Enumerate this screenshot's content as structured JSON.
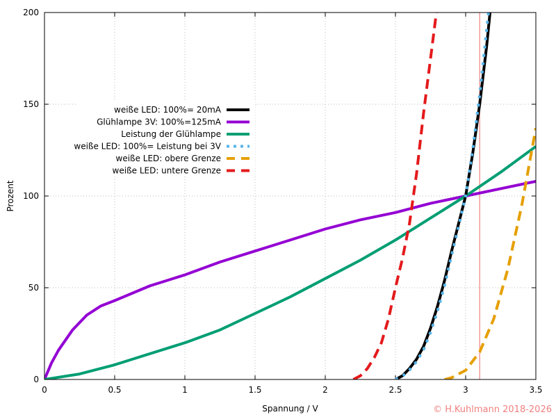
{
  "chart_data": {
    "type": "line",
    "title": "",
    "xlabel": "Spannung / V",
    "ylabel": "Prozent",
    "xlim": [
      0,
      3.5
    ],
    "ylim": [
      0,
      200
    ],
    "xticks": [
      "0",
      "0.5",
      "1",
      "1.5",
      "2",
      "2.5",
      "3",
      "3.5"
    ],
    "yticks": [
      "0",
      "50",
      "100",
      "150",
      "200"
    ],
    "grid": true,
    "legend_position": "upper-left-center",
    "vline": {
      "x": 3.1,
      "color": "#f08080"
    },
    "series": [
      {
        "name": "weiße LED:  100%=  20mA",
        "color": "#000000",
        "style": "solid",
        "x": [
          2.5,
          2.55,
          2.6,
          2.65,
          2.7,
          2.75,
          2.8,
          2.85,
          2.9,
          2.95,
          3.0,
          3.05,
          3.1,
          3.15,
          3.18
        ],
        "y": [
          0,
          2,
          6,
          11,
          18,
          28,
          40,
          54,
          70,
          85,
          100,
          123,
          150,
          182,
          205
        ]
      },
      {
        "name": "Glühlampe 3V: 100%=125mA",
        "color": "#9400d3",
        "style": "solid",
        "x": [
          0,
          0.05,
          0.1,
          0.2,
          0.3,
          0.4,
          0.5,
          0.75,
          1.0,
          1.25,
          1.5,
          1.75,
          2.0,
          2.25,
          2.5,
          2.75,
          3.0,
          3.25,
          3.5
        ],
        "y": [
          0,
          9,
          16,
          27,
          35,
          40,
          43,
          51,
          57,
          64,
          70,
          76,
          82,
          87,
          91,
          96,
          100,
          104,
          108
        ]
      },
      {
        "name": "Leistung der Glühlampe",
        "color": "#009e73",
        "style": "solid",
        "x": [
          0,
          0.25,
          0.5,
          0.75,
          1.0,
          1.25,
          1.5,
          1.75,
          2.0,
          2.25,
          2.5,
          2.75,
          3.0,
          3.25,
          3.5
        ],
        "y": [
          0,
          3,
          8,
          14,
          20,
          27,
          36,
          45,
          55,
          65,
          76,
          88,
          100,
          113,
          127
        ]
      },
      {
        "name": "weiße LED:  100%= Leistung bei 3V",
        "color": "#56b4e9",
        "style": "dotted",
        "x": [
          2.5,
          2.55,
          2.6,
          2.65,
          2.7,
          2.75,
          2.8,
          2.85,
          2.9,
          2.95,
          3.0,
          3.05,
          3.1,
          3.15,
          3.17
        ],
        "y": [
          0,
          1.7,
          5.2,
          9.7,
          16.2,
          25.7,
          37.3,
          51.3,
          67.7,
          83.6,
          100,
          125,
          155,
          191,
          205
        ]
      },
      {
        "name": "weiße LED: obere Grenze",
        "color": "#e69f00",
        "style": "dashed",
        "x": [
          2.85,
          2.9,
          3.0,
          3.1,
          3.2,
          3.3,
          3.4,
          3.5
        ],
        "y": [
          0,
          1,
          5,
          15,
          33,
          60,
          95,
          137
        ]
      },
      {
        "name": "weiße LED: untere Grenze",
        "color": "#e41a1c",
        "style": "dashed",
        "x": [
          2.2,
          2.25,
          2.3,
          2.35,
          2.4,
          2.45,
          2.5,
          2.55,
          2.6,
          2.65,
          2.7,
          2.75,
          2.8
        ],
        "y": [
          0,
          2,
          6,
          12,
          20,
          33,
          50,
          66,
          85,
          112,
          145,
          175,
          205
        ]
      }
    ]
  },
  "copyright": "© H.Kuhlmann 2018-2026"
}
